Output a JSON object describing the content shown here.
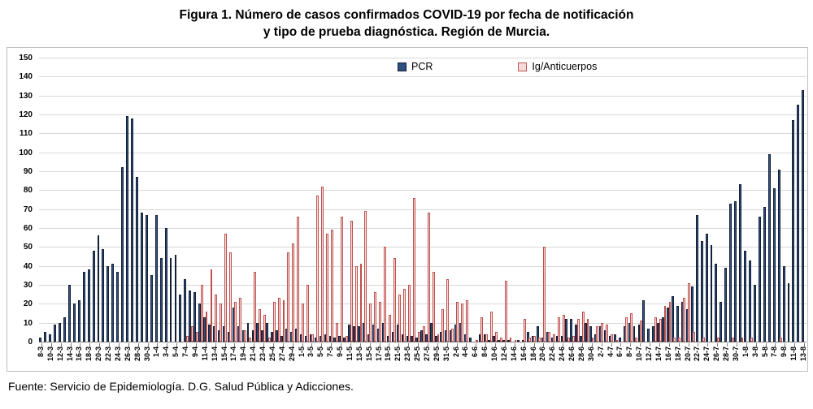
{
  "title": {
    "line1": "Figura 1. Número de casos confirmados COVID-19 por fecha de notificación",
    "line2": "y tipo de prueba diagnóstica. Región de Murcia."
  },
  "legend": {
    "pcr": "PCR",
    "ig": "Ig/Anticuerpos"
  },
  "footer": "Fuente: Servicio de Epidemiología. D.G. Salud Pública y Adicciones.",
  "colors": {
    "pcr_fill": "#2e4f82",
    "pcr_border": "#131f33",
    "ig_fill": "#f2dcdb",
    "ig_border": "#c0504d",
    "grid": "#d8d8d8",
    "axis": "#7f7f7f"
  },
  "chart_data": {
    "type": "bar",
    "title": "Figura 1. Número de casos confirmados COVID-19 por fecha de notificación y tipo de prueba diagnóstica. Región de Murcia.",
    "xlabel": "",
    "ylabel": "",
    "ylim": [
      0,
      150
    ],
    "ytick_step": 10,
    "grid": "horizontal",
    "legend_position": "top-center-inside",
    "x_tick_label_every": 2,
    "categories": [
      "8-3",
      "9-3",
      "10-3",
      "11-3",
      "12-3",
      "13-3",
      "14-3",
      "15-3",
      "16-3",
      "17-3",
      "18-3",
      "19-3",
      "20-3",
      "21-3",
      "22-3",
      "23-3",
      "24-3",
      "25-3",
      "26-3",
      "27-3",
      "28-3",
      "29-3",
      "30-3",
      "31-3",
      "1-4",
      "2-4",
      "3-4",
      "4-4",
      "5-4",
      "6-4",
      "7-4",
      "8-4",
      "9-4",
      "10-4",
      "11-4",
      "12-4",
      "13-4",
      "14-4",
      "15-4",
      "16-4",
      "17-4",
      "18-4",
      "19-4",
      "20-4",
      "21-4",
      "22-4",
      "23-4",
      "24-4",
      "25-4",
      "26-4",
      "27-4",
      "28-4",
      "29-4",
      "30-4",
      "1-5",
      "2-5",
      "3-5",
      "4-5",
      "5-5",
      "6-5",
      "7-5",
      "8-5",
      "9-5",
      "10-5",
      "11-5",
      "12-5",
      "13-5",
      "14-5",
      "15-5",
      "16-5",
      "17-5",
      "18-5",
      "19-5",
      "20-5",
      "21-5",
      "22-5",
      "23-5",
      "24-5",
      "25-5",
      "26-5",
      "27-5",
      "28-5",
      "29-5",
      "30-5",
      "31-5",
      "1-6",
      "2-6",
      "3-6",
      "4-6",
      "5-6",
      "6-6",
      "7-6",
      "8-6",
      "9-6",
      "10-6",
      "11-6",
      "12-6",
      "13-6",
      "14-6",
      "15-6",
      "16-6",
      "17-6",
      "18-6",
      "19-6",
      "20-6",
      "21-6",
      "22-6",
      "23-6",
      "24-6",
      "25-6",
      "26-6",
      "27-6",
      "28-6",
      "29-6",
      "30-6",
      "1-7",
      "2-7",
      "3-7",
      "4-7",
      "5-7",
      "6-7",
      "7-7",
      "8-7",
      "9-7",
      "10-7",
      "11-7",
      "12-7",
      "13-7",
      "14-7",
      "15-7",
      "16-7",
      "17-7",
      "18-7",
      "19-7",
      "20-7",
      "21-7",
      "22-7",
      "23-7",
      "24-7",
      "25-7",
      "26-7",
      "27-7",
      "28-7",
      "29-7",
      "30-7",
      "31-7",
      "1-8",
      "2-8",
      "3-8",
      "4-8",
      "5-8",
      "6-8",
      "7-8",
      "8-8",
      "9-8",
      "10-8",
      "11-8",
      "12-8",
      "13-8"
    ],
    "series": [
      {
        "name": "PCR",
        "values": [
          2,
          5,
          4,
          9,
          10,
          13,
          30,
          20,
          22,
          37,
          38,
          48,
          56,
          49,
          40,
          41,
          37,
          92,
          119,
          118,
          87,
          68,
          67,
          35,
          67,
          44,
          60,
          44,
          46,
          25,
          33,
          27,
          26,
          20,
          13,
          9,
          8,
          6,
          8,
          5,
          18,
          8,
          6,
          10,
          6,
          10,
          6,
          10,
          5,
          6,
          3,
          7,
          5,
          7,
          4,
          3,
          4,
          2,
          3,
          4,
          3,
          2,
          3,
          2,
          9,
          8,
          8,
          10,
          4,
          9,
          7,
          10,
          3,
          5,
          9,
          4,
          3,
          3,
          2,
          6,
          4,
          10,
          3,
          5,
          6,
          6,
          9,
          10,
          4,
          2,
          0,
          4,
          4,
          1,
          3,
          1,
          1,
          1,
          0,
          1,
          1,
          5,
          3,
          8,
          2,
          5,
          2,
          3,
          3,
          12,
          12,
          9,
          3,
          10,
          8,
          4,
          8,
          6,
          3,
          4,
          2,
          8,
          10,
          8,
          9,
          22,
          7,
          8,
          10,
          13,
          18,
          24,
          19,
          21,
          17,
          29,
          67,
          53,
          57,
          51,
          41,
          21,
          39,
          73,
          74,
          83,
          48,
          43,
          30,
          66,
          71,
          99,
          81,
          91,
          40,
          31,
          117,
          125,
          133
        ]
      },
      {
        "name": "Ig/Anticuerpos",
        "values": [
          0,
          0,
          0,
          0,
          0,
          0,
          0,
          0,
          0,
          0,
          0,
          0,
          0,
          0,
          0,
          0,
          0,
          0,
          0,
          0,
          0,
          0,
          0,
          0,
          0,
          0,
          0,
          0,
          0,
          0,
          3,
          8,
          5,
          30,
          16,
          38,
          25,
          20,
          57,
          47,
          21,
          23,
          6,
          2,
          37,
          17,
          14,
          2,
          21,
          23,
          22,
          47,
          52,
          66,
          20,
          30,
          4,
          77,
          82,
          57,
          59,
          10,
          66,
          3,
          64,
          40,
          41,
          69,
          20,
          26,
          21,
          50,
          14,
          44,
          25,
          28,
          30,
          76,
          5,
          8,
          68,
          37,
          4,
          17,
          33,
          7,
          21,
          20,
          22,
          0,
          1,
          13,
          4,
          16,
          5,
          2,
          32,
          2,
          1,
          0,
          12,
          2,
          3,
          2,
          50,
          5,
          4,
          13,
          14,
          2,
          3,
          12,
          16,
          12,
          2,
          8,
          10,
          9,
          4,
          1,
          0,
          13,
          15,
          2,
          11,
          0,
          0,
          13,
          12,
          19,
          21,
          2,
          2,
          23,
          31,
          5,
          0,
          2,
          0,
          0,
          2,
          0,
          0,
          2,
          0,
          2,
          0,
          2,
          0,
          0,
          0,
          0,
          0,
          2,
          0,
          0,
          0,
          0,
          0
        ]
      }
    ]
  }
}
